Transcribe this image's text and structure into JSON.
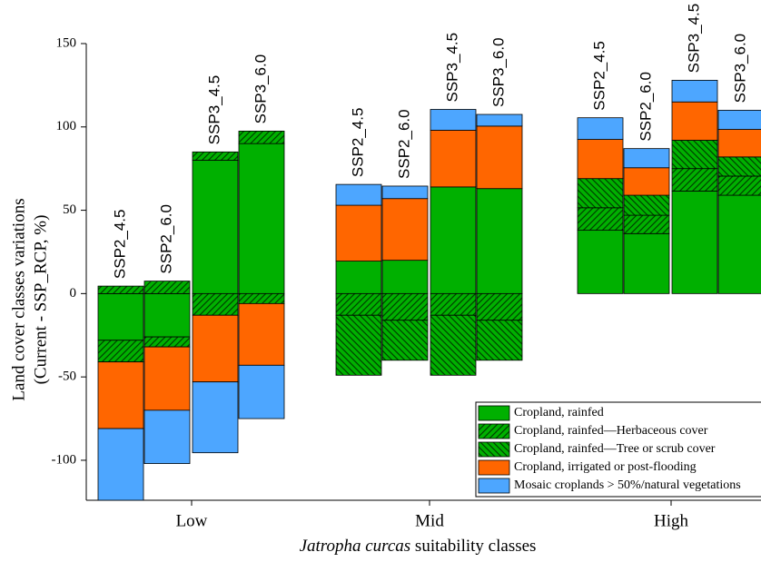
{
  "chart_data": {
    "type": "stacked-bar",
    "ylabel": [
      "Land cover classes variations",
      "(Current - SSP_RCP, %)"
    ],
    "xlabel": {
      "species": "Jatropha curcas",
      "text": "suitability classes"
    },
    "groups": [
      "Low",
      "Mid",
      "High"
    ],
    "bars": [
      "SSP2_4.5",
      "SSP2_6.0",
      "SSP3_4.5",
      "SSP3_6.0"
    ],
    "ylim": [
      -124,
      150
    ],
    "yticks": [
      -100,
      -50,
      0,
      50,
      100,
      150
    ],
    "series": [
      {
        "name": "Cropland, rainfed",
        "color": "#00b000",
        "hatch": null,
        "values": [
          null,
          null,
          80,
          90,
          19.5,
          20,
          64,
          63,
          38,
          36,
          61.5,
          59
        ],
        "negative_values": [
          -28,
          -26,
          null,
          null,
          null,
          null,
          null,
          null,
          null,
          null,
          null,
          null
        ]
      },
      {
        "name": "Cropland, rainfed—Herbaceous cover",
        "color": "#00b000",
        "hatch": "/",
        "values": [
          4.5,
          7.5,
          5,
          7.5,
          null,
          null,
          null,
          null,
          13.5,
          11,
          13.5,
          11.5
        ],
        "negative_values": [
          -13,
          -6,
          -13,
          -6,
          -13,
          -16,
          -13,
          -16,
          null,
          null,
          null,
          null
        ]
      },
      {
        "name": "Cropland, rainfed—Tree or scrub cover",
        "color": "#00b000",
        "hatch": "\\",
        "values": [
          null,
          null,
          null,
          null,
          null,
          null,
          null,
          null,
          17.5,
          12,
          17,
          11.5
        ],
        "negative_values": [
          null,
          null,
          null,
          null,
          -36,
          -24,
          -36,
          -24,
          null,
          null,
          null,
          null
        ]
      },
      {
        "name": "Cropland, irrigated or post-flooding",
        "color": "#ff6600",
        "hatch": null,
        "values": [
          null,
          null,
          null,
          null,
          33.5,
          37,
          34,
          37.5,
          23.5,
          16.5,
          23,
          16.5
        ],
        "negative_values": [
          -40,
          -38,
          -40,
          -37,
          null,
          null,
          null,
          null,
          null,
          null,
          null,
          null
        ]
      },
      {
        "name": "Mosaic croplands > 50%/natural vegetations",
        "color": "#4da6ff",
        "hatch": null,
        "values": [
          null,
          null,
          null,
          null,
          12.5,
          7.5,
          12.5,
          7,
          13,
          11.5,
          13,
          11.5
        ],
        "negative_values": [
          -43,
          -32,
          -42.5,
          -32,
          null,
          null,
          null,
          null,
          null,
          null,
          null,
          null
        ]
      }
    ]
  }
}
